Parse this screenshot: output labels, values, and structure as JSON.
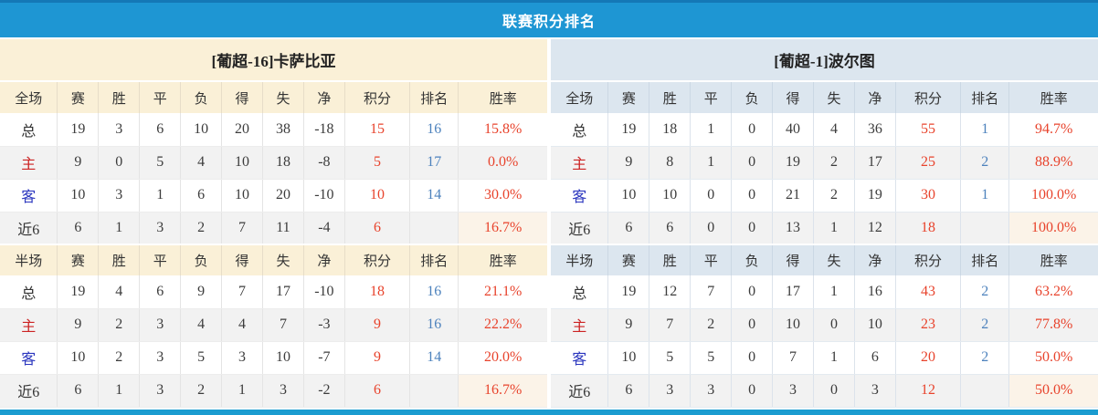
{
  "title": "联赛积分排名",
  "stat_columns": [
    "赛",
    "胜",
    "平",
    "负",
    "得",
    "失",
    "净",
    "积分",
    "排名",
    "胜率"
  ],
  "teams": [
    {
      "name": "[葡超-16]卡萨比亚",
      "sections": [
        {
          "header_label": "全场",
          "rows": [
            {
              "label": "总",
              "type": "total",
              "values": [
                "19",
                "3",
                "6",
                "10",
                "20",
                "38",
                "-18"
              ],
              "points": "15",
              "rank": "16",
              "rate": "15.8%"
            },
            {
              "label": "主",
              "type": "home",
              "values": [
                "9",
                "0",
                "5",
                "4",
                "10",
                "18",
                "-8"
              ],
              "points": "5",
              "rank": "17",
              "rate": "0.0%"
            },
            {
              "label": "客",
              "type": "away",
              "values": [
                "10",
                "3",
                "1",
                "6",
                "10",
                "20",
                "-10"
              ],
              "points": "10",
              "rank": "14",
              "rate": "30.0%"
            },
            {
              "label": "近6",
              "type": "last6",
              "values": [
                "6",
                "1",
                "3",
                "2",
                "7",
                "11",
                "-4"
              ],
              "points": "6",
              "rank": "",
              "rate": "16.7%"
            }
          ]
        },
        {
          "header_label": "半场",
          "rows": [
            {
              "label": "总",
              "type": "total",
              "values": [
                "19",
                "4",
                "6",
                "9",
                "7",
                "17",
                "-10"
              ],
              "points": "18",
              "rank": "16",
              "rate": "21.1%"
            },
            {
              "label": "主",
              "type": "home",
              "values": [
                "9",
                "2",
                "3",
                "4",
                "4",
                "7",
                "-3"
              ],
              "points": "9",
              "rank": "16",
              "rate": "22.2%"
            },
            {
              "label": "客",
              "type": "away",
              "values": [
                "10",
                "2",
                "3",
                "5",
                "3",
                "10",
                "-7"
              ],
              "points": "9",
              "rank": "14",
              "rate": "20.0%"
            },
            {
              "label": "近6",
              "type": "last6",
              "values": [
                "6",
                "1",
                "3",
                "2",
                "1",
                "3",
                "-2"
              ],
              "points": "6",
              "rank": "",
              "rate": "16.7%"
            }
          ]
        }
      ]
    },
    {
      "name": "[葡超-1]波尔图",
      "sections": [
        {
          "header_label": "全场",
          "rows": [
            {
              "label": "总",
              "type": "total",
              "values": [
                "19",
                "18",
                "1",
                "0",
                "40",
                "4",
                "36"
              ],
              "points": "55",
              "rank": "1",
              "rate": "94.7%"
            },
            {
              "label": "主",
              "type": "home",
              "values": [
                "9",
                "8",
                "1",
                "0",
                "19",
                "2",
                "17"
              ],
              "points": "25",
              "rank": "2",
              "rate": "88.9%"
            },
            {
              "label": "客",
              "type": "away",
              "values": [
                "10",
                "10",
                "0",
                "0",
                "21",
                "2",
                "19"
              ],
              "points": "30",
              "rank": "1",
              "rate": "100.0%"
            },
            {
              "label": "近6",
              "type": "last6",
              "values": [
                "6",
                "6",
                "0",
                "0",
                "13",
                "1",
                "12"
              ],
              "points": "18",
              "rank": "",
              "rate": "100.0%"
            }
          ]
        },
        {
          "header_label": "半场",
          "rows": [
            {
              "label": "总",
              "type": "total",
              "values": [
                "19",
                "12",
                "7",
                "0",
                "17",
                "1",
                "16"
              ],
              "points": "43",
              "rank": "2",
              "rate": "63.2%"
            },
            {
              "label": "主",
              "type": "home",
              "values": [
                "9",
                "7",
                "2",
                "0",
                "10",
                "0",
                "10"
              ],
              "points": "23",
              "rank": "2",
              "rate": "77.8%"
            },
            {
              "label": "客",
              "type": "away",
              "values": [
                "10",
                "5",
                "5",
                "0",
                "7",
                "1",
                "6"
              ],
              "points": "20",
              "rank": "2",
              "rate": "50.0%"
            },
            {
              "label": "近6",
              "type": "last6",
              "values": [
                "6",
                "3",
                "3",
                "0",
                "3",
                "0",
                "3"
              ],
              "points": "12",
              "rank": "",
              "rate": "50.0%"
            }
          ]
        }
      ]
    }
  ],
  "colors": {
    "topstrip": "#1478B6",
    "titlebar": "#1E96D3",
    "cream": "#FAF0D7",
    "bluehead": "#DCE6EF",
    "rowalt": "#F2F2F2",
    "red": "#E8432C",
    "rankblue": "#4D82BD",
    "homered": "#CC2222",
    "awayblue": "#2A35BE",
    "text": "#3C3C3C",
    "warm": "#FBF3E8",
    "bottombar": "#1B9CD0"
  }
}
